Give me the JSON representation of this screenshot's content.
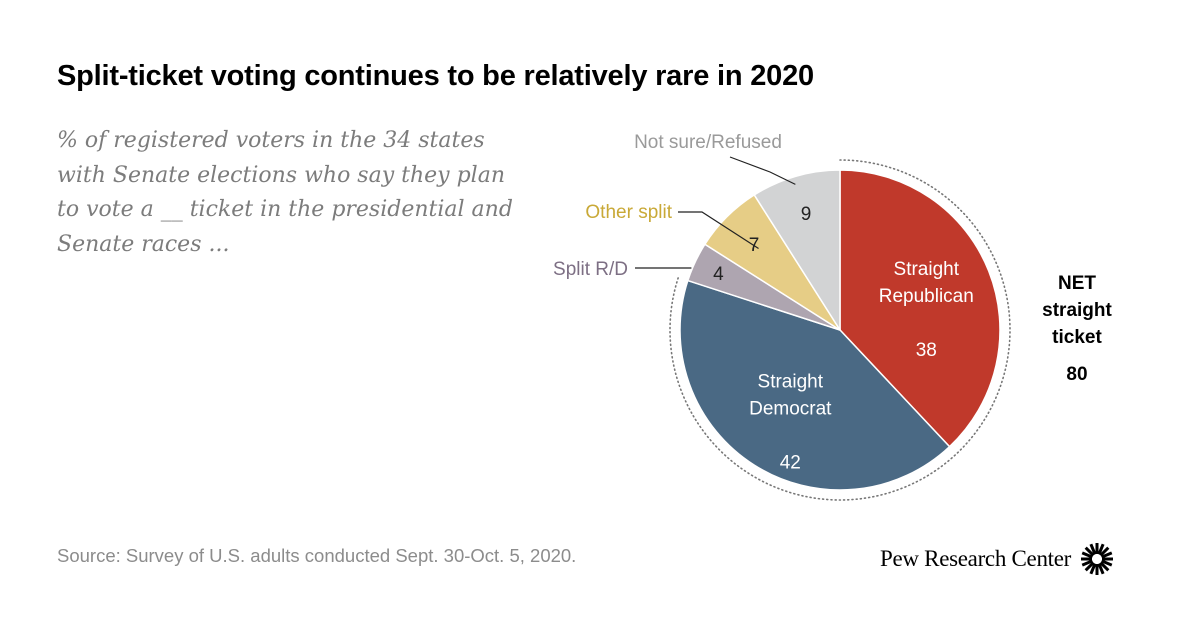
{
  "title": "Split-ticket voting continues to be relatively rare in 2020",
  "subtitle": "% of registered voters in the 34 states with Senate elections who say they plan to vote a __ ticket in the presidential and Senate races ...",
  "source": "Source: Survey of U.S. adults conducted Sept. 30-Oct. 5, 2020.",
  "brand": "Pew Research Center",
  "colors": {
    "republican": "#c0392b",
    "democrat": "#4a6984",
    "split_rd": "#aea5b0",
    "other_split": "#e6cd86",
    "not_sure": "#d2d3d4",
    "outside_label_split_rd": "#7d6f84",
    "outside_label_other": "#c9a937",
    "outside_label_not_sure": "#9a9a9a"
  },
  "chart_data": {
    "type": "pie",
    "title": "Split-ticket voting continues to be relatively rare in 2020",
    "unit": "%",
    "start": "12 o'clock, clockwise",
    "slices": [
      {
        "key": "rep",
        "label": "Straight Republican",
        "label_lines": [
          "Straight",
          "Republican"
        ],
        "value": 38,
        "label_position": "inside"
      },
      {
        "key": "dem",
        "label": "Straight Democrat",
        "label_lines": [
          "Straight",
          "Democrat"
        ],
        "value": 42,
        "label_position": "inside"
      },
      {
        "key": "split_rd",
        "label": "Split R/D",
        "label_lines": [
          "Split R/D"
        ],
        "value": 4,
        "label_position": "outside"
      },
      {
        "key": "other_split",
        "label": "Other split",
        "label_lines": [
          "Other split"
        ],
        "value": 7,
        "label_position": "outside"
      },
      {
        "key": "not_sure",
        "label": "Not sure/Refused",
        "label_lines": [
          "Not sure/Refused"
        ],
        "value": 9,
        "label_position": "outside"
      }
    ],
    "net": {
      "label_lines": [
        "NET",
        "straight",
        "ticket"
      ],
      "value": 80,
      "covers": [
        "Straight Republican",
        "Straight Democrat"
      ]
    }
  }
}
